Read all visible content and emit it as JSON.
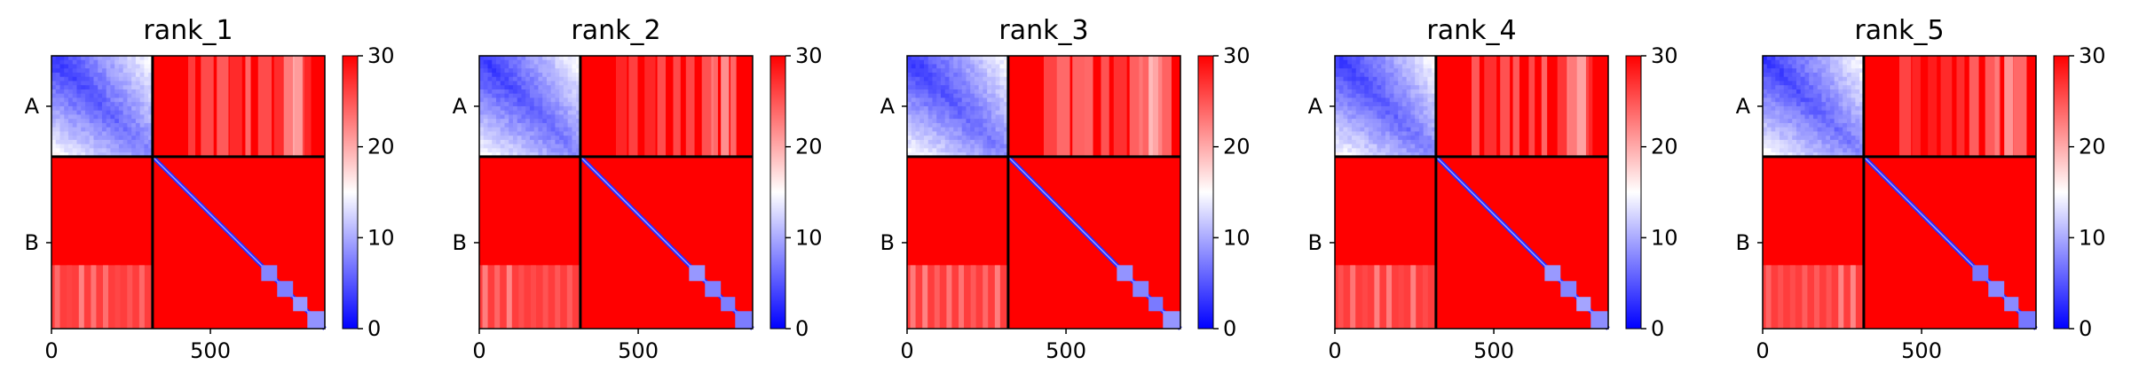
{
  "chart_data": [
    {
      "type": "heatmap",
      "title": "rank_1",
      "xticks": [
        0,
        500
      ],
      "ytick_labels": [
        "A",
        "B"
      ],
      "chain_boundary": 318,
      "n_residues": 860,
      "colorbar": {
        "ticks": [
          0,
          10,
          20,
          30
        ],
        "range": [
          0,
          30
        ],
        "colormap": "bwr"
      },
      "seed": 11
    },
    {
      "type": "heatmap",
      "title": "rank_2",
      "xticks": [
        0,
        500
      ],
      "ytick_labels": [
        "A",
        "B"
      ],
      "chain_boundary": 318,
      "n_residues": 860,
      "colorbar": {
        "ticks": [
          0,
          10,
          20,
          30
        ],
        "range": [
          0,
          30
        ],
        "colormap": "bwr"
      },
      "seed": 23
    },
    {
      "type": "heatmap",
      "title": "rank_3",
      "xticks": [
        0,
        500
      ],
      "ytick_labels": [
        "A",
        "B"
      ],
      "chain_boundary": 318,
      "n_residues": 860,
      "colorbar": {
        "ticks": [
          0,
          10,
          20,
          30
        ],
        "range": [
          0,
          30
        ],
        "colormap": "bwr"
      },
      "seed": 37
    },
    {
      "type": "heatmap",
      "title": "rank_4",
      "xticks": [
        0,
        500
      ],
      "ytick_labels": [
        "A",
        "B"
      ],
      "chain_boundary": 318,
      "n_residues": 860,
      "colorbar": {
        "ticks": [
          0,
          10,
          20,
          30
        ],
        "range": [
          0,
          30
        ],
        "colormap": "bwr"
      },
      "seed": 41
    },
    {
      "type": "heatmap",
      "title": "rank_5",
      "xticks": [
        0,
        500
      ],
      "ytick_labels": [
        "A",
        "B"
      ],
      "chain_boundary": 318,
      "n_residues": 860,
      "colorbar": {
        "ticks": [
          0,
          10,
          20,
          30
        ],
        "range": [
          0,
          30
        ],
        "colormap": "bwr"
      },
      "seed": 53
    }
  ]
}
